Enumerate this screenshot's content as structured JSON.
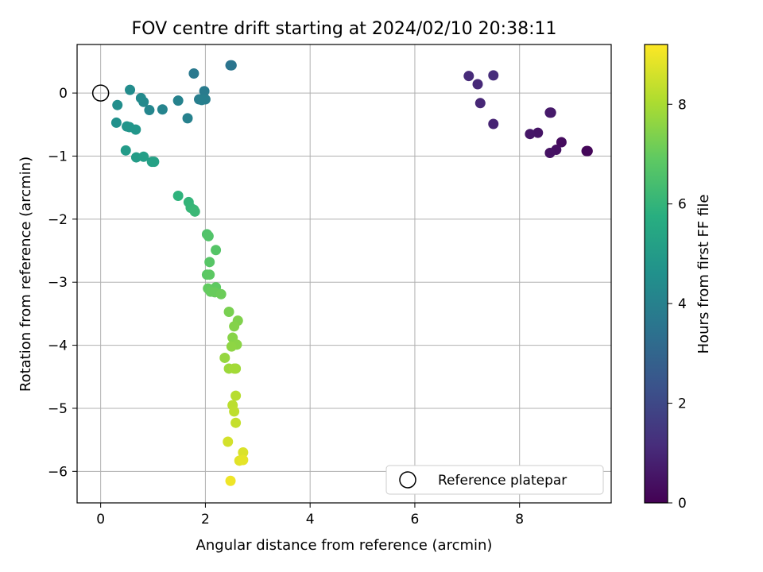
{
  "chart_data": {
    "type": "scatter",
    "title": "FOV centre drift starting at 2024/02/10 20:38:11",
    "xlabel": "Angular distance from reference (arcmin)",
    "ylabel": "Rotation from reference (arcmin)",
    "xlim": [
      -0.45,
      9.75
    ],
    "ylim": [
      -6.5,
      0.77
    ],
    "xticks": [
      0,
      2,
      4,
      6,
      8
    ],
    "yticks": [
      0,
      -1,
      -2,
      -3,
      -4,
      -5,
      -6
    ],
    "grid": true,
    "legend": {
      "position": "lower-right",
      "entries": [
        "Reference platepar"
      ]
    },
    "reference_point": {
      "x": 0,
      "y": 0
    },
    "colorbar": {
      "label": "Hours from first FF file",
      "range": [
        0,
        9.2
      ],
      "ticks": [
        0,
        2,
        4,
        6,
        8
      ],
      "colormap": [
        "#440154",
        "#472d7b",
        "#3b528b",
        "#2c728e",
        "#21918c",
        "#28ae80",
        "#5ec962",
        "#addc30",
        "#fde725"
      ]
    },
    "points": [
      {
        "x": 9.3,
        "y": -0.92,
        "h": 0.1
      },
      {
        "x": 9.28,
        "y": -0.92,
        "h": 0.15
      },
      {
        "x": 8.8,
        "y": -0.78,
        "h": 0.3
      },
      {
        "x": 8.7,
        "y": -0.9,
        "h": 0.4
      },
      {
        "x": 8.58,
        "y": -0.95,
        "h": 0.45
      },
      {
        "x": 8.35,
        "y": -0.63,
        "h": 0.5
      },
      {
        "x": 8.2,
        "y": -0.65,
        "h": 0.55
      },
      {
        "x": 8.6,
        "y": -0.31,
        "h": 0.6
      },
      {
        "x": 8.58,
        "y": -0.31,
        "h": 0.65
      },
      {
        "x": 7.5,
        "y": -0.49,
        "h": 0.9
      },
      {
        "x": 7.25,
        "y": -0.16,
        "h": 1.0
      },
      {
        "x": 7.2,
        "y": 0.14,
        "h": 1.05
      },
      {
        "x": 7.03,
        "y": 0.27,
        "h": 1.1
      },
      {
        "x": 7.5,
        "y": 0.28,
        "h": 1.15
      },
      {
        "x": 2.48,
        "y": 0.44,
        "h": 3.5
      },
      {
        "x": 2.5,
        "y": 0.44,
        "h": 3.55
      },
      {
        "x": 1.78,
        "y": 0.31,
        "h": 3.7
      },
      {
        "x": 1.98,
        "y": 0.03,
        "h": 3.8
      },
      {
        "x": 1.88,
        "y": -0.1,
        "h": 3.85
      },
      {
        "x": 2.0,
        "y": -0.1,
        "h": 3.9
      },
      {
        "x": 1.93,
        "y": -0.11,
        "h": 3.95
      },
      {
        "x": 1.66,
        "y": -0.4,
        "h": 4.0
      },
      {
        "x": 1.48,
        "y": -0.12,
        "h": 4.05
      },
      {
        "x": 1.18,
        "y": -0.26,
        "h": 4.1
      },
      {
        "x": 0.93,
        "y": -0.27,
        "h": 4.2
      },
      {
        "x": 0.82,
        "y": -0.14,
        "h": 4.3
      },
      {
        "x": 0.77,
        "y": -0.08,
        "h": 4.35
      },
      {
        "x": 0.56,
        "y": 0.05,
        "h": 4.4
      },
      {
        "x": 0.32,
        "y": -0.19,
        "h": 4.5
      },
      {
        "x": 0.3,
        "y": -0.47,
        "h": 4.6
      },
      {
        "x": 0.5,
        "y": -0.53,
        "h": 4.7
      },
      {
        "x": 0.55,
        "y": -0.54,
        "h": 4.75
      },
      {
        "x": 0.67,
        "y": -0.58,
        "h": 4.8
      },
      {
        "x": 0.48,
        "y": -0.91,
        "h": 5.0
      },
      {
        "x": 0.68,
        "y": -1.02,
        "h": 5.05
      },
      {
        "x": 0.82,
        "y": -1.01,
        "h": 5.1
      },
      {
        "x": 0.98,
        "y": -1.09,
        "h": 5.2
      },
      {
        "x": 1.02,
        "y": -1.09,
        "h": 5.25
      },
      {
        "x": 1.48,
        "y": -1.63,
        "h": 5.9
      },
      {
        "x": 1.68,
        "y": -1.73,
        "h": 6.0
      },
      {
        "x": 1.72,
        "y": -1.82,
        "h": 6.05
      },
      {
        "x": 1.78,
        "y": -1.85,
        "h": 6.1
      },
      {
        "x": 1.8,
        "y": -1.88,
        "h": 6.15
      },
      {
        "x": 2.03,
        "y": -2.24,
        "h": 6.6
      },
      {
        "x": 2.06,
        "y": -2.27,
        "h": 6.65
      },
      {
        "x": 2.2,
        "y": -2.49,
        "h": 6.7
      },
      {
        "x": 2.08,
        "y": -2.68,
        "h": 6.75
      },
      {
        "x": 2.03,
        "y": -2.88,
        "h": 6.8
      },
      {
        "x": 2.08,
        "y": -2.88,
        "h": 6.85
      },
      {
        "x": 2.2,
        "y": -3.08,
        "h": 6.9
      },
      {
        "x": 2.05,
        "y": -3.1,
        "h": 6.95
      },
      {
        "x": 2.1,
        "y": -3.15,
        "h": 7.0
      },
      {
        "x": 2.18,
        "y": -3.16,
        "h": 7.05
      },
      {
        "x": 2.3,
        "y": -3.19,
        "h": 7.1
      },
      {
        "x": 2.45,
        "y": -3.47,
        "h": 7.3
      },
      {
        "x": 2.62,
        "y": -3.61,
        "h": 7.4
      },
      {
        "x": 2.55,
        "y": -3.7,
        "h": 7.45
      },
      {
        "x": 2.52,
        "y": -3.88,
        "h": 7.5
      },
      {
        "x": 2.6,
        "y": -3.99,
        "h": 7.55
      },
      {
        "x": 2.5,
        "y": -4.02,
        "h": 7.6
      },
      {
        "x": 2.37,
        "y": -4.2,
        "h": 7.7
      },
      {
        "x": 2.45,
        "y": -4.37,
        "h": 7.8
      },
      {
        "x": 2.58,
        "y": -4.37,
        "h": 7.85
      },
      {
        "x": 2.55,
        "y": -4.37,
        "h": 7.9
      },
      {
        "x": 2.58,
        "y": -4.8,
        "h": 8.2
      },
      {
        "x": 2.52,
        "y": -4.95,
        "h": 8.25
      },
      {
        "x": 2.55,
        "y": -5.05,
        "h": 8.3
      },
      {
        "x": 2.58,
        "y": -5.23,
        "h": 8.4
      },
      {
        "x": 2.43,
        "y": -5.53,
        "h": 8.6
      },
      {
        "x": 2.72,
        "y": -5.7,
        "h": 8.7
      },
      {
        "x": 2.65,
        "y": -5.83,
        "h": 8.8
      },
      {
        "x": 2.72,
        "y": -5.82,
        "h": 8.85
      },
      {
        "x": 2.48,
        "y": -6.15,
        "h": 9.0
      }
    ]
  }
}
